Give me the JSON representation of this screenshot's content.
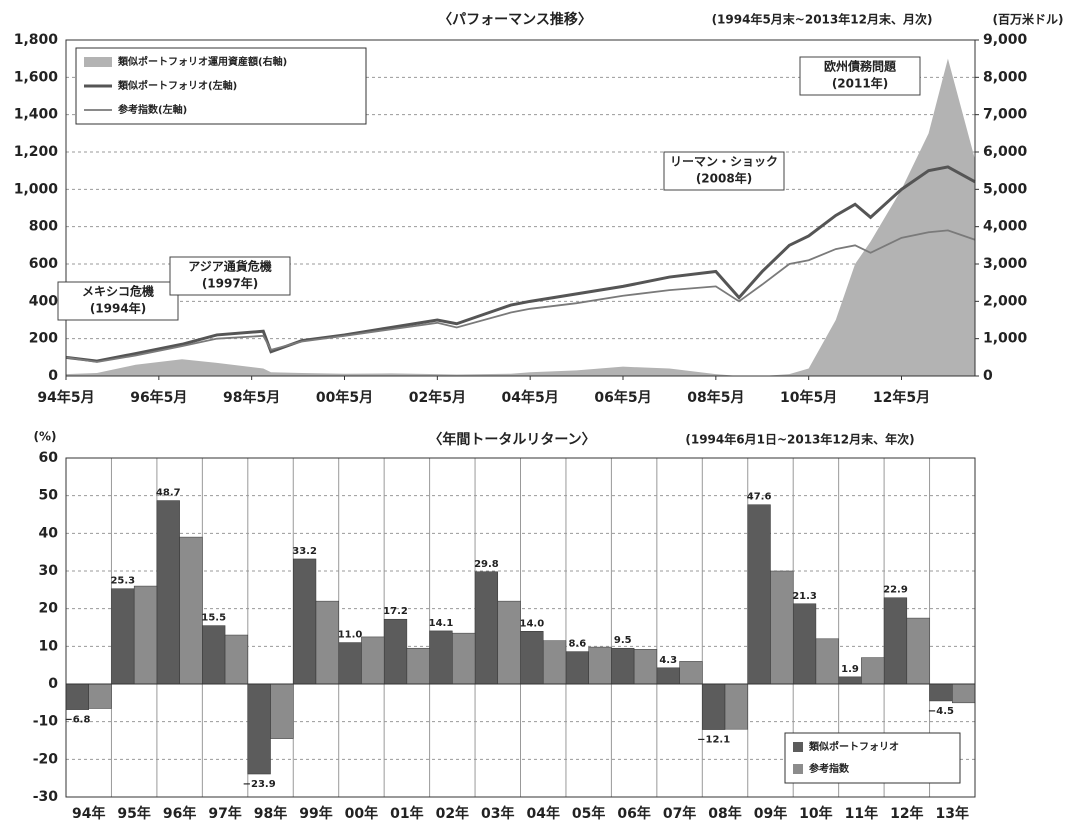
{
  "chart_data": [
    {
      "type": "line",
      "title": "〈パフォーマンス推移〉",
      "subtitle": "(1994年5月末~2013年12月末、月次)",
      "y2_label": "(百万米ドル)",
      "x": [
        "1994-05",
        "1995-01",
        "1995-11",
        "1996-11",
        "1997-08",
        "1998-08",
        "1998-10",
        "1999-06",
        "2000-05",
        "2001-05",
        "2002-05",
        "2002-10",
        "2003-12",
        "2004-05",
        "2005-05",
        "2006-05",
        "2007-05",
        "2008-05",
        "2008-11",
        "2009-05",
        "2009-12",
        "2010-05",
        "2010-12",
        "2011-05",
        "2011-09",
        "2012-05",
        "2012-12",
        "2013-05",
        "2013-12"
      ],
      "xlim": [
        "1994-05",
        "2013-12"
      ],
      "xticks": [
        {
          "value": "1994-05",
          "label": "94年5月"
        },
        {
          "value": "1996-05",
          "label": "96年5月"
        },
        {
          "value": "1998-05",
          "label": "98年5月"
        },
        {
          "value": "2000-05",
          "label": "00年5月"
        },
        {
          "value": "2002-05",
          "label": "02年5月"
        },
        {
          "value": "2004-05",
          "label": "04年5月"
        },
        {
          "value": "2006-05",
          "label": "06年5月"
        },
        {
          "value": "2008-05",
          "label": "08年5月"
        },
        {
          "value": "2010-05",
          "label": "10年5月"
        },
        {
          "value": "2012-05",
          "label": "12年5月"
        }
      ],
      "ylim": [
        0,
        1800
      ],
      "yticks": [
        0,
        200,
        400,
        600,
        800,
        {
          "value": 1000,
          "label": "1,000"
        },
        {
          "value": 1200,
          "label": "1,200"
        },
        {
          "value": 1400,
          "label": "1,400"
        },
        {
          "value": 1600,
          "label": "1,600"
        },
        {
          "value": 1800,
          "label": "1,800"
        }
      ],
      "y2lim": [
        0,
        9000
      ],
      "y2ticks": [
        0,
        {
          "value": 1000,
          "label": "1,000"
        },
        {
          "value": 2000,
          "label": "2,000"
        },
        {
          "value": 3000,
          "label": "3,000"
        },
        {
          "value": 4000,
          "label": "4,000"
        },
        {
          "value": 5000,
          "label": "5,000"
        },
        {
          "value": 6000,
          "label": "6,000"
        },
        {
          "value": 7000,
          "label": "7,000"
        },
        {
          "value": 8000,
          "label": "8,000"
        },
        {
          "value": 9000,
          "label": "9,000"
        }
      ],
      "grid": true,
      "legend": "top-left",
      "series": [
        {
          "name": "類似ポートフォリオ運用資産額(右軸)",
          "type": "area",
          "axis": "y2",
          "color": "#b3b3b3",
          "values": [
            50,
            80,
            300,
            450,
            350,
            200,
            100,
            80,
            60,
            70,
            50,
            40,
            60,
            100,
            150,
            250,
            200,
            50,
            0,
            0,
            50,
            200,
            1500,
            3000,
            3600,
            5000,
            6500,
            8500,
            5800
          ]
        },
        {
          "name": "類似ポートフォリオ(左軸)",
          "type": "line",
          "color": "#555555",
          "values": [
            100,
            80,
            120,
            170,
            220,
            240,
            130,
            190,
            220,
            260,
            300,
            280,
            380,
            400,
            440,
            480,
            530,
            560,
            420,
            560,
            700,
            750,
            860,
            920,
            850,
            1000,
            1100,
            1120,
            1040
          ]
        },
        {
          "name": "参考指数(左軸)",
          "type": "line",
          "color": "#7a7a7a",
          "values": [
            100,
            75,
            110,
            160,
            200,
            215,
            140,
            185,
            215,
            250,
            285,
            260,
            340,
            360,
            390,
            430,
            460,
            480,
            400,
            490,
            600,
            620,
            680,
            700,
            660,
            740,
            770,
            780,
            730
          ]
        }
      ],
      "annotations": [
        {
          "lines": [
            "メキシコ危機",
            "(1994年)"
          ]
        },
        {
          "lines": [
            "アジア通貨危機",
            "(1997年)"
          ]
        },
        {
          "lines": [
            "リーマン・ショック",
            "(2008年)"
          ]
        },
        {
          "lines": [
            "欧州債務問題",
            "(2011年)"
          ]
        }
      ]
    },
    {
      "type": "bar",
      "title": "〈年間トータルリターン〉",
      "subtitle": "(1994年6月1日~2013年12月末、年次)",
      "y_label": "(%)",
      "categories": [
        "94年",
        "95年",
        "96年",
        "97年",
        "98年",
        "99年",
        "00年",
        "01年",
        "02年",
        "03年",
        "04年",
        "05年",
        "06年",
        "07年",
        "08年",
        "09年",
        "10年",
        "11年",
        "12年",
        "13年"
      ],
      "ylim": [
        -30,
        60
      ],
      "yticks": [
        -30,
        -20,
        -10,
        0,
        10,
        20,
        30,
        40,
        50,
        60
      ],
      "grid": true,
      "legend": "bottom-right",
      "series": [
        {
          "name": "類似ポートフォリオ",
          "color": "#5c5c5c",
          "values": [
            -6.8,
            25.3,
            48.7,
            15.5,
            -23.9,
            33.2,
            11.0,
            17.2,
            14.1,
            29.8,
            14.0,
            8.6,
            9.5,
            4.3,
            -12.1,
            47.6,
            21.3,
            1.9,
            22.9,
            -4.5
          ],
          "value_labels": [
            "−6.8",
            "25.3",
            "48.7",
            "15.5",
            "−23.9",
            "33.2",
            "11.0",
            "17.2",
            "14.1",
            "29.8",
            "14.0",
            "8.6",
            "9.5",
            "4.3",
            "−12.1",
            "47.6",
            "21.3",
            "1.9",
            "22.9",
            "−4.5"
          ]
        },
        {
          "name": "参考指数",
          "color": "#8c8c8c",
          "values": [
            -6.5,
            26,
            39,
            13,
            -14.5,
            22,
            12.5,
            9.5,
            13.5,
            22,
            11.5,
            9.8,
            9.2,
            6,
            -12,
            30,
            12,
            7,
            17.5,
            -5
          ]
        }
      ]
    }
  ]
}
